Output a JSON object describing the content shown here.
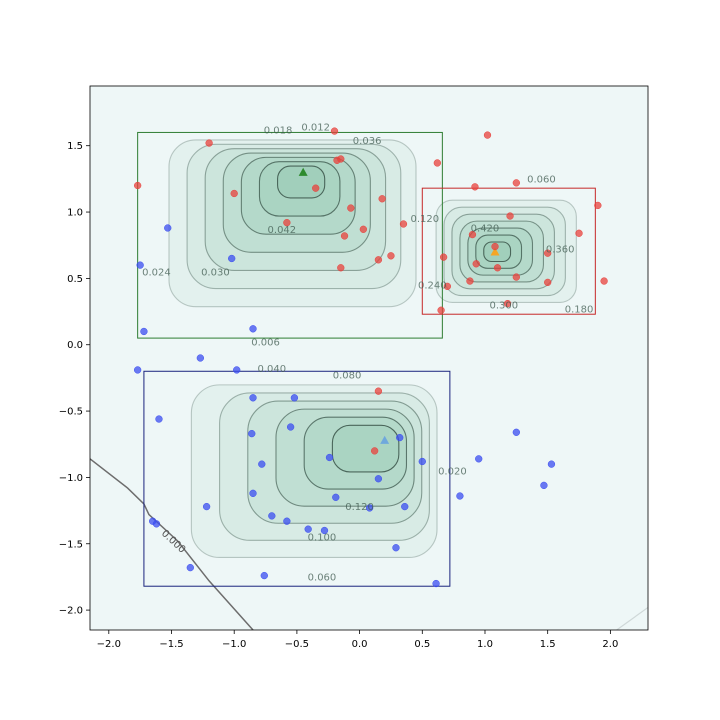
{
  "chart_data": {
    "type": "scatter",
    "title": "",
    "xlabel": "",
    "ylabel": "",
    "xlim": [
      -2.15,
      2.3
    ],
    "ylim": [
      -2.15,
      1.95
    ],
    "grid": false,
    "x_ticks": [
      -2.0,
      -1.5,
      -1.0,
      -0.5,
      0.0,
      0.5,
      1.0,
      1.5,
      2.0
    ],
    "x_tick_labels": [
      "−2.0",
      "−1.5",
      "−1.0",
      "−0.5",
      "0.0",
      "0.5",
      "1.0",
      "1.5",
      "2.0"
    ],
    "y_ticks": [
      -2.0,
      -1.5,
      -1.0,
      -0.5,
      0.0,
      0.5,
      1.0,
      1.5
    ],
    "y_tick_labels": [
      "−2.0",
      "−1.5",
      "−1.0",
      "−0.5",
      "0.0",
      "0.5",
      "1.0",
      "1.5"
    ],
    "colors": {
      "red": "#e8413c",
      "blue": "#3b4ef0",
      "green_box": "#2e7d32",
      "red_box": "#c62828",
      "blue_box": "#1a237e",
      "contour": "#3f5a4f",
      "fill": "#7fbfa0",
      "background": "#eef7f7"
    },
    "regions": [
      {
        "name": "green",
        "box": [
          -1.77,
          0.05,
          0.66,
          1.6
        ],
        "center": [
          -0.45,
          1.3
        ],
        "levels": [
          0.006,
          0.012,
          0.018,
          0.024,
          0.03,
          0.036,
          0.042
        ],
        "max_level": 0.045,
        "marker_color": "#2e8b2e",
        "labels": [
          {
            "text": "0.018",
            "x": -0.65,
            "y": 1.62
          },
          {
            "text": "0.012",
            "x": -0.35,
            "y": 1.64
          },
          {
            "text": "0.036",
            "x": 0.06,
            "y": 1.54
          },
          {
            "text": "0.042",
            "x": -0.62,
            "y": 0.87
          },
          {
            "text": "0.024",
            "x": -1.62,
            "y": 0.55
          },
          {
            "text": "0.030",
            "x": -1.15,
            "y": 0.55
          },
          {
            "text": "0.006",
            "x": -0.75,
            "y": 0.02
          }
        ]
      },
      {
        "name": "red",
        "box": [
          0.5,
          0.23,
          1.88,
          1.18
        ],
        "center": [
          1.08,
          0.7
        ],
        "levels": [
          0.06,
          0.12,
          0.18,
          0.24,
          0.3,
          0.36,
          0.42
        ],
        "max_level": 0.45,
        "marker_color": "#f5a623",
        "labels": [
          {
            "text": "0.060",
            "x": 1.45,
            "y": 1.25
          },
          {
            "text": "0.120",
            "x": 0.52,
            "y": 0.95
          },
          {
            "text": "0.420",
            "x": 1.0,
            "y": 0.88
          },
          {
            "text": "0.360",
            "x": 1.6,
            "y": 0.72
          },
          {
            "text": "0.240",
            "x": 0.58,
            "y": 0.45
          },
          {
            "text": "0.300",
            "x": 1.15,
            "y": 0.3
          },
          {
            "text": "0.180",
            "x": 1.75,
            "y": 0.27
          }
        ]
      },
      {
        "name": "blue",
        "box": [
          -1.72,
          -1.82,
          0.72,
          -0.2
        ],
        "center": [
          0.2,
          -0.72
        ],
        "levels": [
          0.02,
          0.04,
          0.06,
          0.08,
          0.1,
          0.12
        ],
        "max_level": 0.14,
        "marker_color": "#6fa8dc",
        "labels": [
          {
            "text": "0.040",
            "x": -0.7,
            "y": -0.18
          },
          {
            "text": "0.080",
            "x": -0.1,
            "y": -0.23
          },
          {
            "text": "0.020",
            "x": 0.74,
            "y": -0.95
          },
          {
            "text": "0.120",
            "x": 0.0,
            "y": -1.22
          },
          {
            "text": "0.100",
            "x": -0.3,
            "y": -1.45
          },
          {
            "text": "0.060",
            "x": -0.3,
            "y": -1.75
          }
        ]
      }
    ],
    "zero_contour": {
      "label": "0.000",
      "label_at": [
        -1.5,
        -1.5
      ],
      "points": [
        [
          -2.15,
          -0.86
        ],
        [
          -1.85,
          -1.08
        ],
        [
          -1.72,
          -1.2
        ],
        [
          -1.68,
          -1.28
        ],
        [
          -1.45,
          -1.48
        ],
        [
          -1.2,
          -1.78
        ],
        [
          -0.85,
          -2.15
        ]
      ]
    },
    "corner_contour": {
      "points": [
        [
          2.05,
          -2.15
        ],
        [
          2.3,
          -1.98
        ]
      ]
    },
    "series": [
      {
        "name": "",
        "color": "red",
        "points": [
          [
            -1.77,
            1.2
          ],
          [
            -1.2,
            1.52
          ],
          [
            -1.0,
            1.14
          ],
          [
            -0.35,
            1.18
          ],
          [
            -0.2,
            1.61
          ],
          [
            -0.18,
            1.39
          ],
          [
            -0.15,
            1.4
          ],
          [
            -0.07,
            1.03
          ],
          [
            -0.58,
            0.92
          ],
          [
            -0.12,
            0.82
          ],
          [
            0.03,
            0.87
          ],
          [
            0.18,
            1.1
          ],
          [
            -0.15,
            0.58
          ],
          [
            0.15,
            0.64
          ],
          [
            0.25,
            0.67
          ],
          [
            0.35,
            0.91
          ],
          [
            0.62,
            1.37
          ],
          [
            0.67,
            0.66
          ],
          [
            0.9,
            0.83
          ],
          [
            0.92,
            1.19
          ],
          [
            1.02,
            1.58
          ],
          [
            1.25,
            1.22
          ],
          [
            1.2,
            0.97
          ],
          [
            1.08,
            0.74
          ],
          [
            0.93,
            0.61
          ],
          [
            1.1,
            0.58
          ],
          [
            1.25,
            0.51
          ],
          [
            0.88,
            0.48
          ],
          [
            1.5,
            0.69
          ],
          [
            1.75,
            0.84
          ],
          [
            1.9,
            1.05
          ],
          [
            1.95,
            0.48
          ],
          [
            0.7,
            0.44
          ],
          [
            0.65,
            0.26
          ],
          [
            1.18,
            0.31
          ],
          [
            1.5,
            0.47
          ],
          [
            0.15,
            -0.35
          ],
          [
            0.12,
            -0.8
          ]
        ]
      },
      {
        "name": "",
        "color": "blue",
        "points": [
          [
            -1.53,
            0.88
          ],
          [
            -1.75,
            0.6
          ],
          [
            -1.72,
            0.1
          ],
          [
            -1.02,
            0.65
          ],
          [
            -0.85,
            0.12
          ],
          [
            -1.27,
            -0.1
          ],
          [
            -1.77,
            -0.19
          ],
          [
            -0.98,
            -0.19
          ],
          [
            -1.6,
            -0.56
          ],
          [
            -0.85,
            -0.4
          ],
          [
            -0.52,
            -0.4
          ],
          [
            -0.86,
            -0.67
          ],
          [
            -0.55,
            -0.62
          ],
          [
            -0.78,
            -0.9
          ],
          [
            -0.24,
            -0.85
          ],
          [
            -0.85,
            -1.12
          ],
          [
            -1.22,
            -1.22
          ],
          [
            -0.7,
            -1.29
          ],
          [
            -0.58,
            -1.33
          ],
          [
            -0.41,
            -1.39
          ],
          [
            -0.28,
            -1.4
          ],
          [
            -0.19,
            -1.15
          ],
          [
            0.08,
            -1.23
          ],
          [
            0.15,
            -1.01
          ],
          [
            0.32,
            -0.7
          ],
          [
            0.5,
            -0.88
          ],
          [
            0.36,
            -1.22
          ],
          [
            0.29,
            -1.53
          ],
          [
            0.61,
            -1.8
          ],
          [
            0.8,
            -1.14
          ],
          [
            0.95,
            -0.86
          ],
          [
            1.25,
            -0.66
          ],
          [
            1.47,
            -1.06
          ],
          [
            1.53,
            -0.9
          ],
          [
            -1.65,
            -1.33
          ],
          [
            -1.62,
            -1.35
          ],
          [
            -1.35,
            -1.68
          ],
          [
            -0.76,
            -1.74
          ]
        ]
      }
    ]
  }
}
